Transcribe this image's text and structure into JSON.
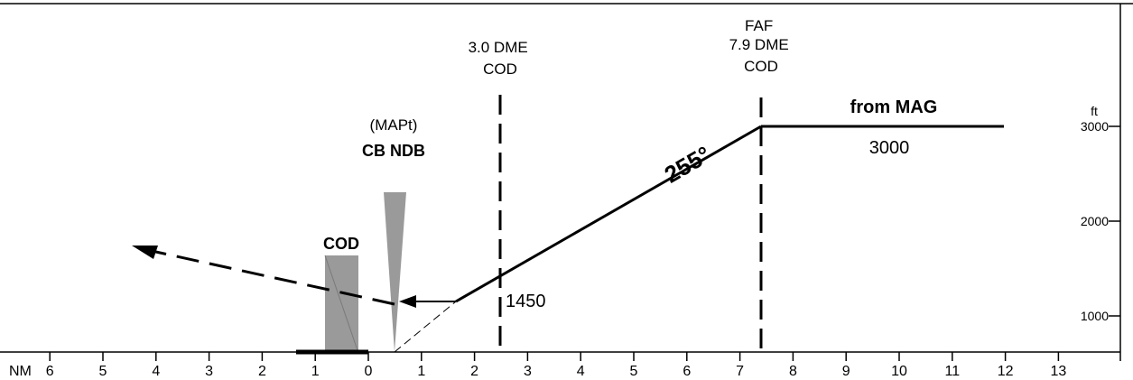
{
  "profile": {
    "distance_unit": "NM",
    "altitude_unit": "ft",
    "distance_ticks": [
      {
        "value": -6,
        "label": "6"
      },
      {
        "value": -5,
        "label": "5"
      },
      {
        "value": -4,
        "label": "4"
      },
      {
        "value": -3,
        "label": "3"
      },
      {
        "value": -2,
        "label": "2"
      },
      {
        "value": -1,
        "label": "1"
      },
      {
        "value": 0,
        "label": "0"
      },
      {
        "value": 1,
        "label": "1"
      },
      {
        "value": 2,
        "label": "2"
      },
      {
        "value": 3,
        "label": "3"
      },
      {
        "value": 4,
        "label": "4"
      },
      {
        "value": 5,
        "label": "5"
      },
      {
        "value": 6,
        "label": "6"
      },
      {
        "value": 7,
        "label": "7"
      },
      {
        "value": 8,
        "label": "8"
      },
      {
        "value": 9,
        "label": "9"
      },
      {
        "value": 10,
        "label": "10"
      },
      {
        "value": 11,
        "label": "11"
      },
      {
        "value": 12,
        "label": "12"
      },
      {
        "value": 13,
        "label": "13"
      }
    ],
    "altitude_ticks": [
      {
        "value": 3000,
        "label": "3000"
      },
      {
        "value": 2000,
        "label": "2000"
      },
      {
        "value": 1000,
        "label": "1000"
      }
    ],
    "fixes": [
      {
        "id": "dme3",
        "distance_nm": 2.5,
        "lines": [
          "3.0 DME",
          "COD"
        ]
      },
      {
        "id": "faf",
        "distance_nm": 7.4,
        "lines": [
          "FAF",
          "7.9 DME",
          "COD"
        ]
      }
    ],
    "mapt": {
      "line1": "(MAPt)",
      "line2": "CB NDB"
    },
    "facility_label": "COD",
    "course_label": "255°",
    "initial_segment": {
      "label": "from MAG",
      "altitude_label": "3000",
      "altitude_ft": 3000
    },
    "step_altitude_label": "1450",
    "colors": {
      "line": "#000000",
      "facility": "#9a9a9a",
      "facility_text": "#a0a0a0"
    }
  }
}
